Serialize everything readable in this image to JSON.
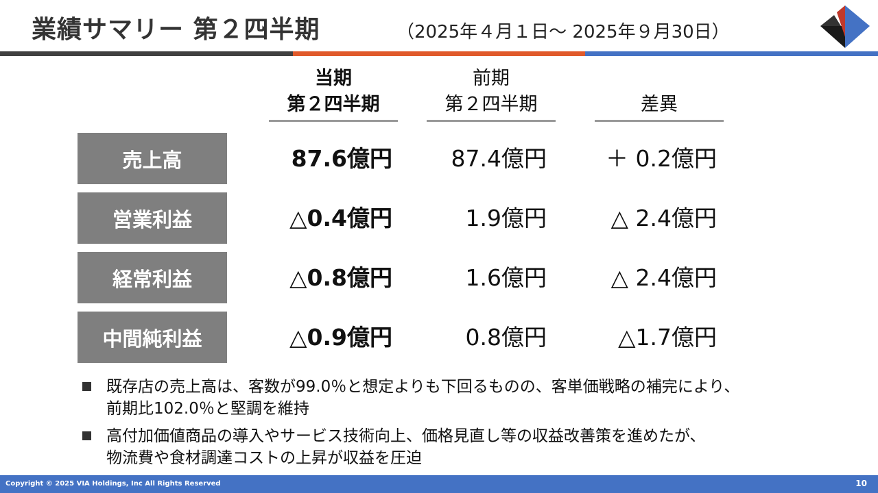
{
  "header": {
    "title": "業績サマリー 第２四半期",
    "period": "（2025年４月１日〜 2025年９月30日）"
  },
  "table": {
    "columns": [
      [
        "当期",
        "第２四半期"
      ],
      [
        "前期",
        "第２四半期"
      ],
      [
        "差異"
      ]
    ],
    "rows": [
      [
        "売上高",
        "87.6億円",
        "87.4億円",
        "＋  0.2億円"
      ],
      [
        "営業利益",
        "△0.4億円",
        "1.9億円",
        "△ 2.4億円"
      ],
      [
        "経常利益",
        "△0.8億円",
        "1.6億円",
        "△ 2.4億円"
      ],
      [
        "中間純利益",
        "△0.9億円",
        "0.8億円",
        "△1.7億円"
      ]
    ]
  },
  "notes": [
    [
      "既存店の売上高は、客数が99.0％と想定よりも下回るものの、客単価戦略の補完により、",
      "前期比102.0％と堅調を維持"
    ],
    [
      "高付加価値商品の導入やサービス技術向上、価格見直し等の収益改善策を進めたが、",
      "物流費や食材調達コストの上昇が収益を圧迫"
    ]
  ],
  "footer": {
    "copyright": "Copyright © 2025 VIA Holdings, Inc All Rights Reserved",
    "page": "10"
  }
}
